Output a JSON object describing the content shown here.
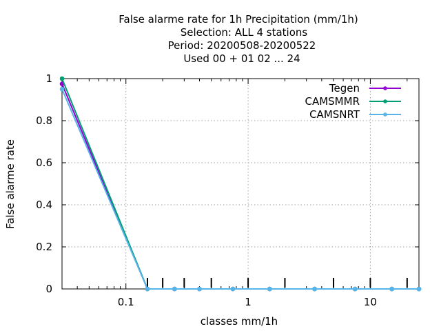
{
  "chart_data": {
    "type": "line",
    "title_lines": [
      "False alarme rate  for 1h Precipitation (mm/1h)",
      "Selection: ALL      4 stations",
      "Period: 20200508-20200522",
      "Used  00 + 01 02 ... 24"
    ],
    "xlabel": "classes mm/1h",
    "ylabel": "False alarme rate",
    "x_scale": "log",
    "xlim": [
      0.03,
      25
    ],
    "ylim": [
      0,
      1
    ],
    "x_ticks": [
      {
        "value": 0.1,
        "label": "0.1"
      },
      {
        "value": 1,
        "label": "1"
      },
      {
        "value": 10,
        "label": "10"
      }
    ],
    "y_ticks": [
      {
        "value": 0,
        "label": "0"
      },
      {
        "value": 0.2,
        "label": "0.2"
      },
      {
        "value": 0.4,
        "label": "0.4"
      },
      {
        "value": 0.6,
        "label": "0.6"
      },
      {
        "value": 0.8,
        "label": "0.8"
      },
      {
        "value": 1,
        "label": "1"
      }
    ],
    "class_marks": [
      0.15,
      0.2,
      0.3,
      0.5,
      1.0,
      2.0,
      5.0,
      10.0,
      20.0
    ],
    "grid": true,
    "legend_position": "top-right",
    "series": [
      {
        "name": "Tegen",
        "color": "#9400d3",
        "x": [
          0.03,
          0.15,
          0.25,
          0.4,
          0.75,
          1.5,
          3.5,
          7.5,
          15,
          25
        ],
        "y": [
          0.975,
          0.0,
          0.0,
          0.0,
          0.0,
          0.0,
          0.0,
          0.0,
          0.0,
          0.0
        ]
      },
      {
        "name": "CAMSMMR",
        "color": "#009e73",
        "x": [
          0.03,
          0.15,
          0.25,
          0.4,
          0.75,
          1.5,
          3.5,
          7.5,
          15,
          25
        ],
        "y": [
          1.0,
          0.0,
          0.0,
          0.0,
          0.0,
          0.0,
          0.0,
          0.0,
          0.0,
          0.0
        ]
      },
      {
        "name": "CAMSNRT",
        "color": "#56b4e9",
        "x": [
          0.03,
          0.15,
          0.25,
          0.4,
          0.75,
          1.5,
          3.5,
          7.5,
          15,
          25
        ],
        "y": [
          0.95,
          0.0,
          0.0,
          0.0,
          0.0,
          0.0,
          0.0,
          0.0,
          0.0,
          0.0
        ]
      }
    ]
  }
}
